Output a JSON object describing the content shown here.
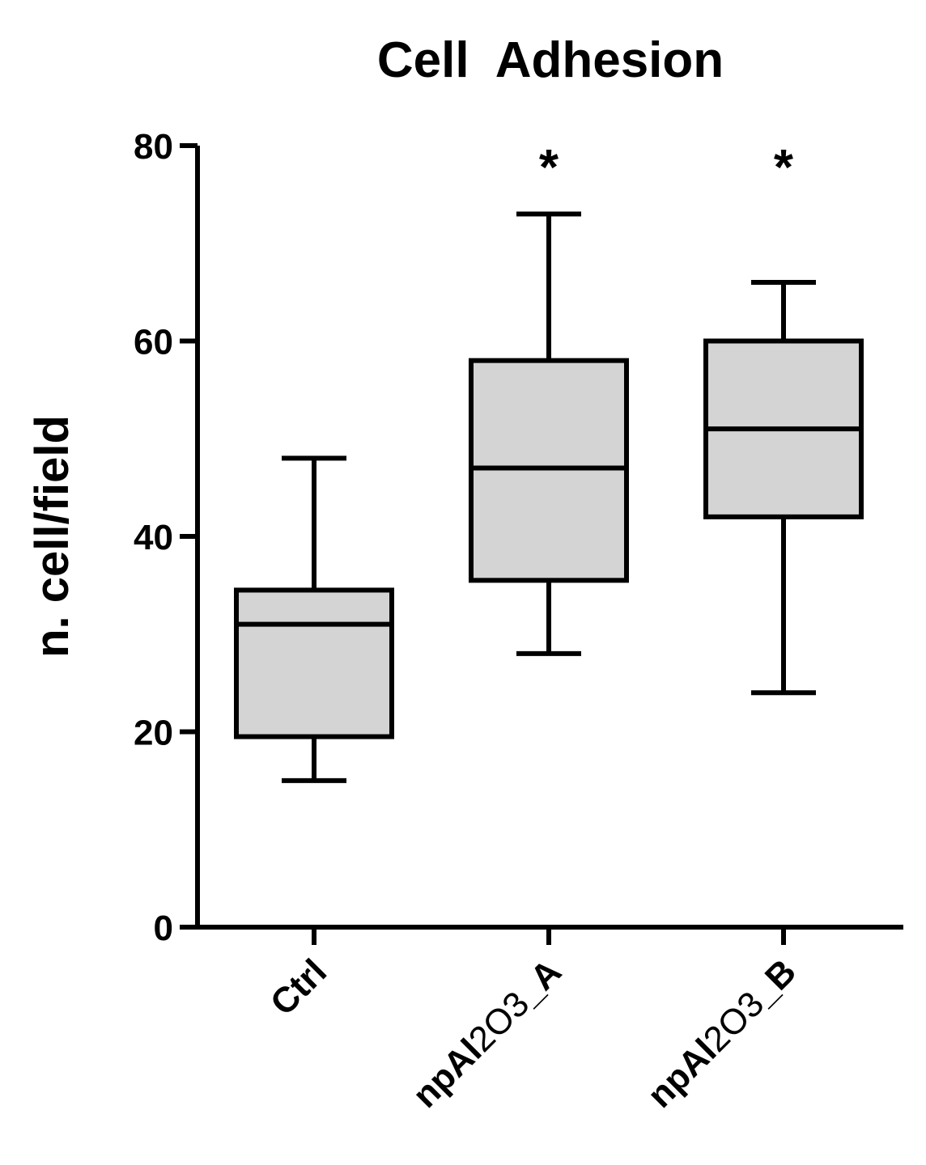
{
  "chart_data": {
    "type": "box",
    "title": "Cell  Adhesion",
    "ylabel": "n. cell/field",
    "xlabel": "",
    "ylim": [
      0,
      80
    ],
    "yticks": [
      0,
      20,
      40,
      60,
      80
    ],
    "categories": [
      "Ctrl",
      "npAl2O3_A",
      "npAl2O3_B"
    ],
    "category_labels": [
      {
        "prefix": "Ctrl",
        "sub1": "",
        "mid": "",
        "sub2": "",
        "suffix": ""
      },
      {
        "prefix": "npAl",
        "sub1": "2",
        "mid": "O",
        "sub2": "3",
        "suffix": "_A"
      },
      {
        "prefix": "npAl",
        "sub1": "2",
        "mid": "O",
        "sub2": "3",
        "suffix": "_B"
      }
    ],
    "boxes": [
      {
        "name": "Ctrl",
        "min": 15,
        "q1": 19.5,
        "median": 31,
        "q3": 34.5,
        "max": 48,
        "significance": ""
      },
      {
        "name": "npAl2O3_A",
        "min": 28,
        "q1": 35.5,
        "median": 47,
        "q3": 58,
        "max": 73,
        "significance": "*"
      },
      {
        "name": "npAl2O3_B",
        "min": 24,
        "q1": 42,
        "median": 51,
        "q3": 60,
        "max": 66,
        "significance": "*"
      }
    ],
    "box_fill": "#d4d4d4",
    "stroke_color": "#000000",
    "grid": false,
    "legend": "none"
  }
}
